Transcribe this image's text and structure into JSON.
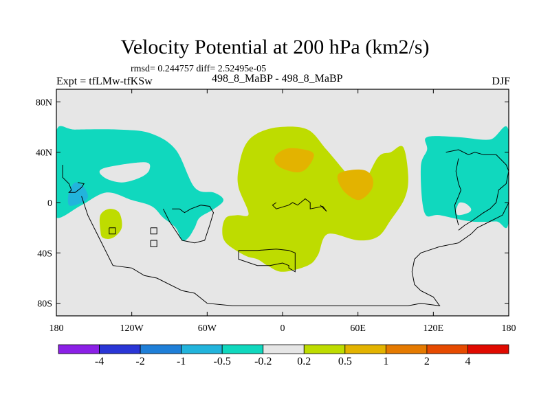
{
  "header": {
    "title": "Velocity Potential at 200 hPa (km2/s)",
    "stats": "rmsd= 0.244757 diff= 2.52495e-05",
    "left_label": "Expt = tfLMw-tfKSw",
    "center_label": "498_8_MaBP - 498_8_MaBP",
    "right_label": "DJF"
  },
  "chart_data": {
    "type": "filled-contour-map",
    "title": "Velocity Potential at 200 hPa (km2/s)",
    "subtitle": "rmsd= 0.244757 diff= 2.52495e-05",
    "variable": "Velocity Potential",
    "level_hPa": 200,
    "units": "km2/s",
    "season": "DJF",
    "experiment": "tfLMw-tfKSw",
    "comparison": "498_8_MaBP - 498_8_MaBP",
    "rmsd": 0.244757,
    "diff": 2.52495e-05,
    "xlim": [
      -180,
      180
    ],
    "ylim": [
      -90,
      90
    ],
    "x_ticks": [
      {
        "value": -180,
        "label": "180"
      },
      {
        "value": -120,
        "label": "120W"
      },
      {
        "value": -60,
        "label": "60W"
      },
      {
        "value": 0,
        "label": "0"
      },
      {
        "value": 60,
        "label": "60E"
      },
      {
        "value": 120,
        "label": "120E"
      },
      {
        "value": 180,
        "label": "180"
      }
    ],
    "y_ticks": [
      {
        "value": 80,
        "label": "80N"
      },
      {
        "value": 40,
        "label": "40N"
      },
      {
        "value": 0,
        "label": "0"
      },
      {
        "value": -40,
        "label": "40S"
      },
      {
        "value": -80,
        "label": "80S"
      }
    ],
    "colorbar": {
      "levels": [
        "-4",
        "-2",
        "-1",
        "-0.5",
        "-0.2",
        "0.2",
        "0.5",
        "1",
        "2",
        "4"
      ],
      "colors": [
        "#8b20e6",
        "#2a36d6",
        "#1f7fd8",
        "#22b4dc",
        "#10d8be",
        "#e6e6e6",
        "#bedc00",
        "#e3b300",
        "#e57a00",
        "#e64a00",
        "#e00a00"
      ]
    },
    "regions": [
      {
        "name": "north-pacific-atlantic-negative",
        "range": "-0.5 to -0.2",
        "color": "#10d8be",
        "points": [
          [
            -180,
            10
          ],
          [
            -180,
            57
          ],
          [
            -165,
            58
          ],
          [
            -130,
            58
          ],
          [
            -105,
            55
          ],
          [
            -85,
            42
          ],
          [
            -70,
            12
          ],
          [
            -55,
            8
          ],
          [
            -48,
            4
          ],
          [
            -48,
            0
          ],
          [
            -56,
            -6
          ],
          [
            -66,
            -12
          ],
          [
            -70,
            -20
          ],
          [
            -75,
            -28
          ],
          [
            -80,
            -30
          ],
          [
            -85,
            -20
          ],
          [
            -95,
            -12
          ],
          [
            -104,
            -3
          ],
          [
            -120,
            2
          ],
          [
            -140,
            8
          ],
          [
            -160,
            -2
          ],
          [
            -180,
            -12
          ]
        ]
      },
      {
        "name": "western-pacific-negative-core",
        "range": "-1 to -0.5",
        "color": "#22b4dc",
        "points": [
          [
            -170,
            -2
          ],
          [
            -162,
            -1
          ],
          [
            -155,
            4
          ],
          [
            -158,
            12
          ],
          [
            -165,
            16
          ],
          [
            -170,
            8
          ]
        ]
      },
      {
        "name": "western-pacific-gap",
        "range": "-0.2 to 0.2",
        "color": "#e6e6e6",
        "points": [
          [
            -143,
            27
          ],
          [
            -110,
            32
          ],
          [
            -106,
            26
          ],
          [
            -113,
            20
          ],
          [
            -128,
            16
          ],
          [
            -142,
            20
          ]
        ]
      },
      {
        "name": "south-pacific-positive",
        "range": "0.2 to 0.5",
        "color": "#bedc00",
        "points": [
          [
            -145,
            -22
          ],
          [
            -145,
            -10
          ],
          [
            -138,
            -5
          ],
          [
            -130,
            -8
          ],
          [
            -128,
            -20
          ],
          [
            -135,
            -28
          ],
          [
            -143,
            -28
          ]
        ]
      },
      {
        "name": "eurasia-africa-positive",
        "range": "0.2 to 0.5",
        "color": "#bedc00",
        "points": [
          [
            -27,
            -9
          ],
          [
            -35,
            12
          ],
          [
            -35,
            27
          ],
          [
            -30,
            45
          ],
          [
            -20,
            55
          ],
          [
            -2,
            60
          ],
          [
            20,
            58
          ],
          [
            35,
            42
          ],
          [
            52,
            22
          ],
          [
            62,
            12
          ],
          [
            76,
            36
          ],
          [
            86,
            40
          ],
          [
            96,
            44
          ],
          [
            100,
            20
          ],
          [
            97,
            3
          ],
          [
            86,
            -14
          ],
          [
            76,
            -27
          ],
          [
            60,
            -30
          ],
          [
            36,
            -25
          ],
          [
            28,
            -42
          ],
          [
            20,
            -50
          ],
          [
            0,
            -55
          ],
          [
            -12,
            -50
          ],
          [
            -20,
            -45
          ],
          [
            -30,
            -42
          ],
          [
            -45,
            -32
          ],
          [
            -48,
            -22
          ],
          [
            -45,
            -12
          ],
          [
            -36,
            -10
          ]
        ]
      },
      {
        "name": "europe-positive-core",
        "range": "0.5 to 1",
        "color": "#e3b300",
        "points": [
          [
            -5,
            38
          ],
          [
            4,
            43
          ],
          [
            18,
            42
          ],
          [
            25,
            38
          ],
          [
            20,
            28
          ],
          [
            12,
            24
          ],
          [
            0,
            27
          ],
          [
            -6,
            32
          ]
        ]
      },
      {
        "name": "indian-ocean-positive-core",
        "range": "0.5 to 1",
        "color": "#e3b300",
        "points": [
          [
            44,
            22
          ],
          [
            48,
            10
          ],
          [
            60,
            2
          ],
          [
            70,
            9
          ],
          [
            72,
            18
          ],
          [
            67,
            25
          ],
          [
            56,
            26
          ]
        ]
      },
      {
        "name": "east-pacific-negative",
        "range": "-0.5 to -0.2",
        "color": "#10d8be",
        "points": [
          [
            115,
            52
          ],
          [
            115,
            42
          ],
          [
            110,
            28
          ],
          [
            113,
            -8
          ],
          [
            125,
            -10
          ],
          [
            150,
            -15
          ],
          [
            170,
            -15
          ],
          [
            180,
            -15
          ],
          [
            180,
            57
          ],
          [
            165,
            50
          ],
          [
            140,
            52
          ]
        ]
      },
      {
        "name": "east-pacific-gap",
        "range": "-0.2 to 0.2",
        "color": "#e6e6e6",
        "points": [
          [
            139,
            -3
          ],
          [
            141,
            0
          ],
          [
            146,
            -1
          ],
          [
            150,
            -5
          ],
          [
            148,
            -8
          ],
          [
            140,
            -10
          ],
          [
            138,
            -7
          ]
        ]
      }
    ],
    "coastline_paths": [
      [
        [
          -175,
          30
        ],
        [
          -175,
          20
        ],
        [
          -170,
          15
        ],
        [
          -168,
          10
        ],
        [
          -170,
          8
        ],
        [
          -165,
          8
        ],
        [
          -160,
          12
        ],
        [
          -158,
          15
        ],
        [
          -163,
          16
        ]
      ],
      [
        [
          -160,
          5
        ],
        [
          -155,
          -10
        ],
        [
          -150,
          -20
        ],
        [
          -145,
          -30
        ],
        [
          -140,
          -40
        ],
        [
          -135,
          -50
        ],
        [
          -120,
          -52
        ],
        [
          -110,
          -58
        ],
        [
          -100,
          -60
        ],
        [
          -80,
          -70
        ],
        [
          -70,
          -72
        ],
        [
          -60,
          -80
        ],
        [
          -40,
          -82
        ],
        [
          -20,
          -82
        ],
        [
          0,
          -82
        ],
        [
          40,
          -82
        ],
        [
          80,
          -82
        ],
        [
          100,
          -82
        ],
        [
          110,
          -80
        ],
        [
          125,
          -82
        ],
        [
          120,
          -75
        ],
        [
          110,
          -70
        ],
        [
          105,
          -65
        ],
        [
          103,
          -55
        ],
        [
          105,
          -45
        ],
        [
          110,
          -40
        ],
        [
          125,
          -35
        ],
        [
          140,
          -32
        ],
        [
          150,
          -25
        ],
        [
          155,
          -20
        ],
        [
          165,
          -15
        ],
        [
          175,
          -10
        ],
        [
          180,
          0
        ]
      ],
      [
        [
          -95,
          -5
        ],
        [
          -90,
          -15
        ],
        [
          -80,
          -30
        ],
        [
          -70,
          -32
        ],
        [
          -62,
          -30
        ],
        [
          -58,
          -18
        ],
        [
          -55,
          -8
        ],
        [
          -58,
          -3
        ],
        [
          -65,
          -2
        ],
        [
          -73,
          -5
        ],
        [
          -78,
          -8
        ],
        [
          -82,
          -5
        ],
        [
          -88,
          -5
        ]
      ],
      [
        [
          -105,
          -20
        ],
        [
          -105,
          -25
        ],
        [
          -100,
          -25
        ],
        [
          -100,
          -20
        ],
        [
          -105,
          -20
        ]
      ],
      [
        [
          -105,
          -30
        ],
        [
          -105,
          -35
        ],
        [
          -100,
          -35
        ],
        [
          -100,
          -30
        ],
        [
          -105,
          -30
        ]
      ],
      [
        [
          -138,
          -20
        ],
        [
          -138,
          -25
        ],
        [
          -133,
          -25
        ],
        [
          -133,
          -20
        ],
        [
          -138,
          -20
        ]
      ],
      [
        [
          -5,
          0
        ],
        [
          -8,
          -2
        ],
        [
          -5,
          -5
        ],
        [
          5,
          -2
        ],
        [
          8,
          0
        ],
        [
          12,
          -2
        ],
        [
          18,
          3
        ],
        [
          22,
          0
        ],
        [
          22,
          -5
        ],
        [
          32,
          -3
        ],
        [
          35,
          -7
        ],
        [
          30,
          -2
        ]
      ],
      [
        [
          -35,
          -38
        ],
        [
          -35,
          -45
        ],
        [
          -20,
          -50
        ],
        [
          -10,
          -50
        ],
        [
          0,
          -48
        ],
        [
          5,
          -50
        ],
        [
          5,
          -52
        ],
        [
          10,
          -55
        ],
        [
          10,
          -40
        ],
        [
          5,
          -38
        ],
        [
          -5,
          -37
        ],
        [
          -20,
          -38
        ],
        [
          -35,
          -38
        ]
      ],
      [
        [
          130,
          40
        ],
        [
          140,
          42
        ],
        [
          148,
          38
        ],
        [
          153,
          40
        ],
        [
          160,
          38
        ],
        [
          170,
          38
        ],
        [
          178,
          30
        ],
        [
          180,
          25
        ],
        [
          178,
          15
        ],
        [
          172,
          10
        ],
        [
          170,
          0
        ],
        [
          165,
          -5
        ],
        [
          160,
          -8
        ],
        [
          150,
          -15
        ],
        [
          145,
          -18
        ],
        [
          140,
          -22
        ]
      ],
      [
        [
          140,
          35
        ],
        [
          138,
          25
        ],
        [
          140,
          15
        ],
        [
          142,
          10
        ],
        [
          140,
          5
        ],
        [
          137,
          -2
        ],
        [
          138,
          -10
        ],
        [
          140,
          -18
        ]
      ]
    ]
  }
}
